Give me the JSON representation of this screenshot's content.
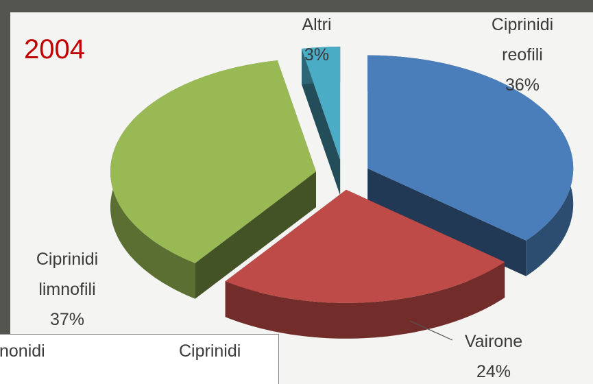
{
  "chart_data": {
    "type": "pie",
    "title": "2004",
    "categories": [
      "Ciprinidi reofili",
      "Vairone",
      "Ciprinidi limnofili",
      "Altri"
    ],
    "values": [
      36,
      24,
      37,
      3
    ],
    "value_labels": [
      "36%",
      "24%",
      "37%",
      "3%"
    ],
    "colors": [
      "#4a7ebb",
      "#be4b48",
      "#98b954",
      "#4bacc6"
    ]
  },
  "overlay": {
    "texts": [
      "nonidi",
      "Ciprinidi"
    ]
  }
}
